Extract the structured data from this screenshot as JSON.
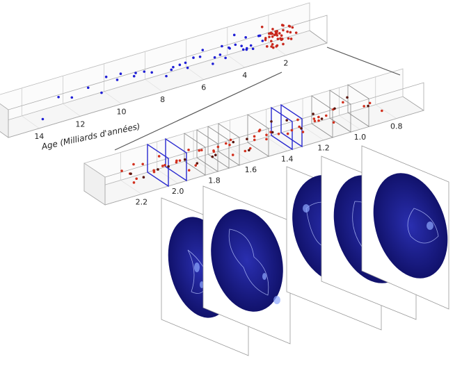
{
  "chart_data": [
    {
      "type": "scatter",
      "xlabel": "Age (Milliards d'années)",
      "xlim": [
        15.5,
        0
      ],
      "xticks": [
        14,
        12,
        10,
        8,
        6,
        4,
        2
      ],
      "series": [
        {
          "color": "#1f1fd6",
          "values": [
            13.7,
            12.4,
            11.9,
            11.3,
            10.8,
            10.2,
            9.9,
            9.4,
            9.0,
            8.7,
            8.3,
            8.0,
            7.6,
            7.3,
            7.0,
            6.8,
            6.5,
            6.2,
            6.0,
            5.8,
            5.6,
            5.4,
            5.2,
            5.0,
            4.8,
            4.6,
            4.5,
            4.3,
            4.1,
            4.0,
            3.8,
            3.7,
            3.5,
            3.4,
            3.3,
            3.2,
            3.1,
            3.0,
            2.9,
            2.8
          ]
        },
        {
          "color": "#c8281c",
          "values": [
            2.7,
            2.6,
            2.55,
            2.5,
            2.45,
            2.4,
            2.38,
            2.35,
            2.3,
            2.28,
            2.25,
            2.22,
            2.2,
            2.18,
            2.15,
            2.12,
            2.1,
            2.08,
            2.05,
            2.02,
            2.0,
            1.98,
            1.95,
            1.92,
            1.9,
            1.88,
            1.85,
            1.82,
            1.8,
            1.78,
            1.75,
            1.72,
            1.7,
            1.68,
            1.65,
            1.62,
            1.6,
            1.55,
            1.5,
            1.45,
            1.4,
            1.35,
            1.3
          ]
        }
      ]
    },
    {
      "type": "scatter",
      "xlim": [
        2.4,
        0.65
      ],
      "xticks": [
        2.2,
        {
          "value": 2,
          "label": "2.0"
        },
        1.8,
        1.6,
        1.4,
        1.2,
        {
          "value": 1,
          "label": "1.0"
        },
        0.8
      ],
      "series": [
        {
          "color": "#d2301e",
          "values": [
            2.25,
            2.22,
            2.2,
            2.18,
            2.15,
            2.12,
            2.1,
            2.08,
            2.05,
            2.03,
            2.0,
            1.98,
            1.95,
            1.92,
            1.9,
            1.87,
            1.85,
            1.82,
            1.8,
            1.77,
            1.75,
            1.72,
            1.7,
            1.67,
            1.65,
            1.62,
            1.6,
            1.57,
            1.55,
            1.52,
            1.5,
            1.47,
            1.45,
            1.42,
            1.4,
            1.37,
            1.35,
            1.32,
            1.3,
            1.27,
            1.25,
            1.22,
            1.2,
            1.17,
            1.15,
            1.12,
            1.1,
            1.05,
            1.0,
            0.95,
            0.9,
            0.85
          ]
        },
        {
          "color": "#5a160e",
          "values": [
            2.21,
            2.13,
            2.06,
            1.99,
            1.93,
            1.86,
            1.79,
            1.73,
            1.66,
            1.59,
            1.53,
            1.46,
            1.39,
            1.33,
            1.26,
            1.19,
            1.13,
            1.06,
            0.98,
            0.92
          ]
        }
      ]
    }
  ]
}
